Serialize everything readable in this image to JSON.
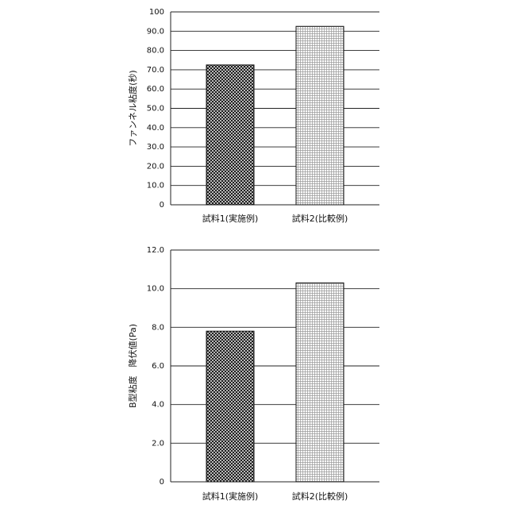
{
  "chart_data": [
    {
      "type": "bar",
      "ylabel": "ファンネル粘度(秒)",
      "categories": [
        "試料1(実施例)",
        "試料2(比較例)"
      ],
      "values": [
        72.5,
        92.5
      ],
      "ylim": [
        0,
        100
      ],
      "yticks": [
        0,
        {
          "value": 10,
          "label": "10.0"
        },
        {
          "value": 20,
          "label": "20.0"
        },
        {
          "value": 30,
          "label": "30.0"
        },
        {
          "value": 40,
          "label": "40.0"
        },
        {
          "value": 50,
          "label": "50.0"
        },
        {
          "value": 60,
          "label": "60.0"
        },
        {
          "value": 70,
          "label": "70.0"
        },
        {
          "value": 80,
          "label": "80.0"
        },
        {
          "value": 90,
          "label": "90.0"
        },
        100
      ],
      "grid": true
    },
    {
      "type": "bar",
      "ylabel": "B型粘度　降伏値(Pa)",
      "categories": [
        "試料1(実施例)",
        "試料2(比較例)"
      ],
      "values": [
        7.8,
        10.3
      ],
      "ylim": [
        0,
        12
      ],
      "yticks": [
        0,
        {
          "value": 2,
          "label": "2.0"
        },
        {
          "value": 4,
          "label": "4.0"
        },
        {
          "value": 6,
          "label": "6.0"
        },
        {
          "value": 8,
          "label": "8.0"
        },
        {
          "value": 10,
          "label": "10.0"
        },
        {
          "value": 12,
          "label": "12.0"
        }
      ],
      "grid": true
    }
  ]
}
